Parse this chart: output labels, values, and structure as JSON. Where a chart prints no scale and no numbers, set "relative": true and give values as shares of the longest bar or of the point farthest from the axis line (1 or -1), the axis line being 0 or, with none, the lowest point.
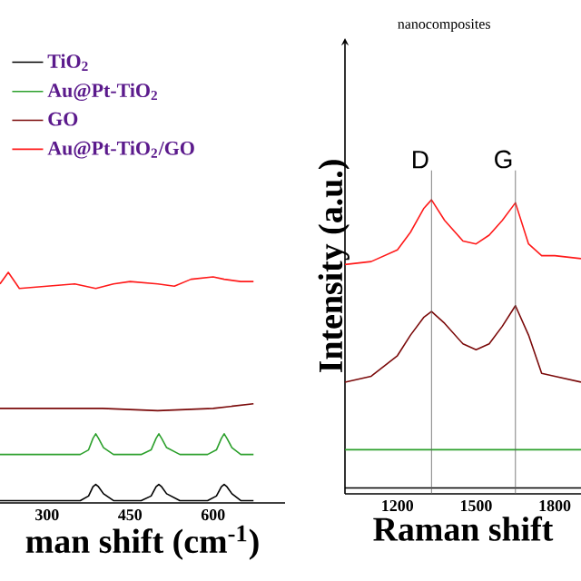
{
  "chart_data": [
    {
      "type": "line",
      "relative": true,
      "xlabel": "man shift (cm$^{-1}$)",
      "xlim": [
        215,
        730
      ],
      "xticks": [
        300,
        450,
        600
      ],
      "legend": "top left",
      "series": [
        {
          "name": "TiO$_{2}$",
          "color": "#000000",
          "x": [
            215,
            300,
            360,
            375,
            383,
            388,
            393,
            402,
            420,
            470,
            488,
            497,
            502,
            507,
            516,
            540,
            590,
            606,
            615,
            620,
            625,
            634,
            650,
            673
          ],
          "values": [
            0.01,
            0.01,
            0.01,
            0.03,
            0.07,
            0.08,
            0.07,
            0.04,
            0.01,
            0.01,
            0.03,
            0.07,
            0.08,
            0.07,
            0.04,
            0.01,
            0.01,
            0.03,
            0.07,
            0.08,
            0.07,
            0.04,
            0.01,
            0.01
          ]
        },
        {
          "name": "Au@Pt-TiO$_{2}$",
          "color": "#2ca02c",
          "x": [
            215,
            300,
            360,
            375,
            383,
            388,
            393,
            402,
            420,
            470,
            488,
            497,
            502,
            507,
            516,
            540,
            590,
            606,
            615,
            620,
            625,
            634,
            650,
            673
          ],
          "values": [
            0.21,
            0.21,
            0.21,
            0.23,
            0.28,
            0.3,
            0.28,
            0.24,
            0.21,
            0.21,
            0.23,
            0.28,
            0.3,
            0.28,
            0.24,
            0.21,
            0.21,
            0.23,
            0.28,
            0.3,
            0.28,
            0.24,
            0.21,
            0.21
          ]
        },
        {
          "name": "GO",
          "color": "#7b0a0a",
          "x": [
            215,
            300,
            400,
            500,
            600,
            673
          ],
          "values": [
            0.41,
            0.41,
            0.41,
            0.4,
            0.41,
            0.43
          ]
        },
        {
          "name": "Au@Pt-TiO$_{2}$/GO",
          "color": "#ff1a1a",
          "x": [
            215,
            230,
            250,
            300,
            350,
            388,
            420,
            450,
            500,
            530,
            560,
            600,
            620,
            650,
            673
          ],
          "values": [
            0.95,
            1.0,
            0.93,
            0.94,
            0.95,
            0.93,
            0.95,
            0.96,
            0.95,
            0.94,
            0.97,
            0.98,
            0.97,
            0.96,
            0.96
          ]
        }
      ]
    },
    {
      "type": "line",
      "relative": true,
      "title": "nanocomposites",
      "xlabel": "Raman shift",
      "ylabel": "Intensity (a.u.)",
      "xlim": [
        1000,
        1900
      ],
      "xticks": [
        1200,
        1500,
        1800
      ],
      "ref_lines": [
        {
          "axis": "x",
          "value": 1330,
          "label": "D",
          "color": "#606060"
        },
        {
          "axis": "x",
          "value": 1650,
          "label": "G",
          "color": "#606060"
        }
      ],
      "series": [
        {
          "color": "#000000",
          "x": [
            1000,
            1900
          ],
          "values": [
            0.02,
            0.02
          ]
        },
        {
          "color": "#2ca02c",
          "x": [
            1000,
            1900
          ],
          "values": [
            0.15,
            0.15
          ]
        },
        {
          "color": "#7b0a0a",
          "x": [
            1000,
            1100,
            1200,
            1250,
            1300,
            1330,
            1380,
            1450,
            1500,
            1550,
            1600,
            1650,
            1700,
            1750,
            1800,
            1900
          ],
          "values": [
            0.38,
            0.4,
            0.47,
            0.54,
            0.6,
            0.62,
            0.58,
            0.51,
            0.49,
            0.51,
            0.57,
            0.64,
            0.54,
            0.41,
            0.4,
            0.38
          ]
        },
        {
          "color": "#ff1a1a",
          "x": [
            1000,
            1100,
            1200,
            1250,
            1300,
            1330,
            1380,
            1450,
            1500,
            1550,
            1600,
            1650,
            1700,
            1750,
            1800,
            1900
          ],
          "values": [
            0.78,
            0.79,
            0.83,
            0.89,
            0.97,
            1.0,
            0.93,
            0.86,
            0.85,
            0.88,
            0.93,
            0.99,
            0.85,
            0.81,
            0.81,
            0.8
          ]
        }
      ]
    }
  ]
}
